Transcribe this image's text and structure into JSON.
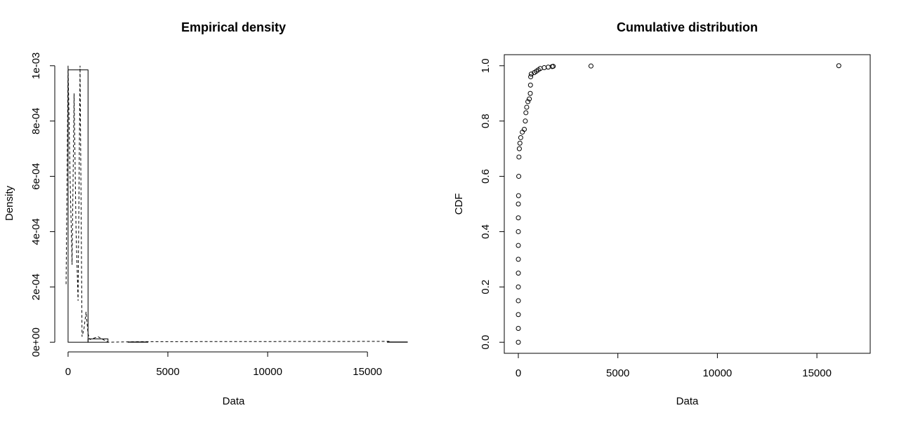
{
  "chart_data": [
    {
      "type": "histogram",
      "title": "Empirical density",
      "xlabel": "Data",
      "ylabel": "Density",
      "bins": [
        0,
        1000,
        2000,
        3000,
        4000,
        5000,
        6000,
        7000,
        8000,
        9000,
        10000,
        11000,
        12000,
        13000,
        14000,
        15000,
        16000,
        17000
      ],
      "values": [
        0.000985,
        1.2e-05,
        0,
        1e-06,
        0,
        0,
        0,
        0,
        0,
        0,
        0,
        0,
        0,
        0,
        0,
        0,
        1e-06
      ],
      "density_line": {
        "x": [
          -100,
          0,
          100,
          200,
          300,
          400,
          500,
          600,
          700,
          800,
          900,
          1000,
          1100,
          1500,
          2000,
          3600,
          16100
        ],
        "values": [
          0.00021,
          0.001,
          0.0006,
          0.00028,
          0.0009,
          0.0004,
          0.00015,
          0.001,
          2e-05,
          5e-05,
          0.00011,
          3e-05,
          1e-05,
          2e-05,
          0,
          2e-06,
          3e-06
        ]
      },
      "xlim": [
        -420,
        17000
      ],
      "ylim": [
        -3.5e-05,
        0.00104
      ],
      "xticks": [
        0,
        5000,
        10000,
        15000
      ],
      "yticks": [
        {
          "value": 0,
          "label": "0e+00"
        },
        {
          "value": 0.0002,
          "label": "2e-04"
        },
        {
          "value": 0.0004,
          "label": "4e-04"
        },
        {
          "value": 0.0006,
          "label": "6e-04"
        },
        {
          "value": 0.0008,
          "label": "8e-04"
        },
        {
          "value": 0.001,
          "label": "1e-03"
        }
      ],
      "color": "#000000"
    },
    {
      "type": "scatter",
      "title": "Cumulative distribution",
      "xlabel": "Data",
      "ylabel": "CDF",
      "x": [
        0,
        0,
        0,
        0,
        0,
        0,
        0,
        0,
        0,
        0,
        0,
        10,
        20,
        30,
        50,
        80,
        120,
        200,
        300,
        350,
        380,
        420,
        480,
        550,
        600,
        610,
        620,
        650,
        800,
        900,
        1000,
        1100,
        1300,
        1500,
        1700,
        1750,
        3650,
        16100
      ],
      "values": [
        0,
        0.05,
        0.1,
        0.15,
        0.2,
        0.25,
        0.3,
        0.35,
        0.4,
        0.45,
        0.5,
        0.53,
        0.6,
        0.67,
        0.7,
        0.72,
        0.74,
        0.76,
        0.77,
        0.8,
        0.83,
        0.85,
        0.87,
        0.88,
        0.9,
        0.93,
        0.96,
        0.97,
        0.975,
        0.98,
        0.985,
        0.99,
        0.993,
        0.995,
        0.997,
        0.998,
        0.999,
        1.0
      ],
      "xlim": [
        -706,
        17678
      ],
      "ylim": [
        -0.04,
        1.04
      ],
      "xticks": [
        0,
        5000,
        10000,
        15000
      ],
      "yticks": [
        {
          "value": 0,
          "label": "0.0"
        },
        0.2,
        0.4,
        0.6,
        0.8,
        {
          "value": 1,
          "label": "1.0"
        }
      ],
      "color": "#000000"
    }
  ]
}
